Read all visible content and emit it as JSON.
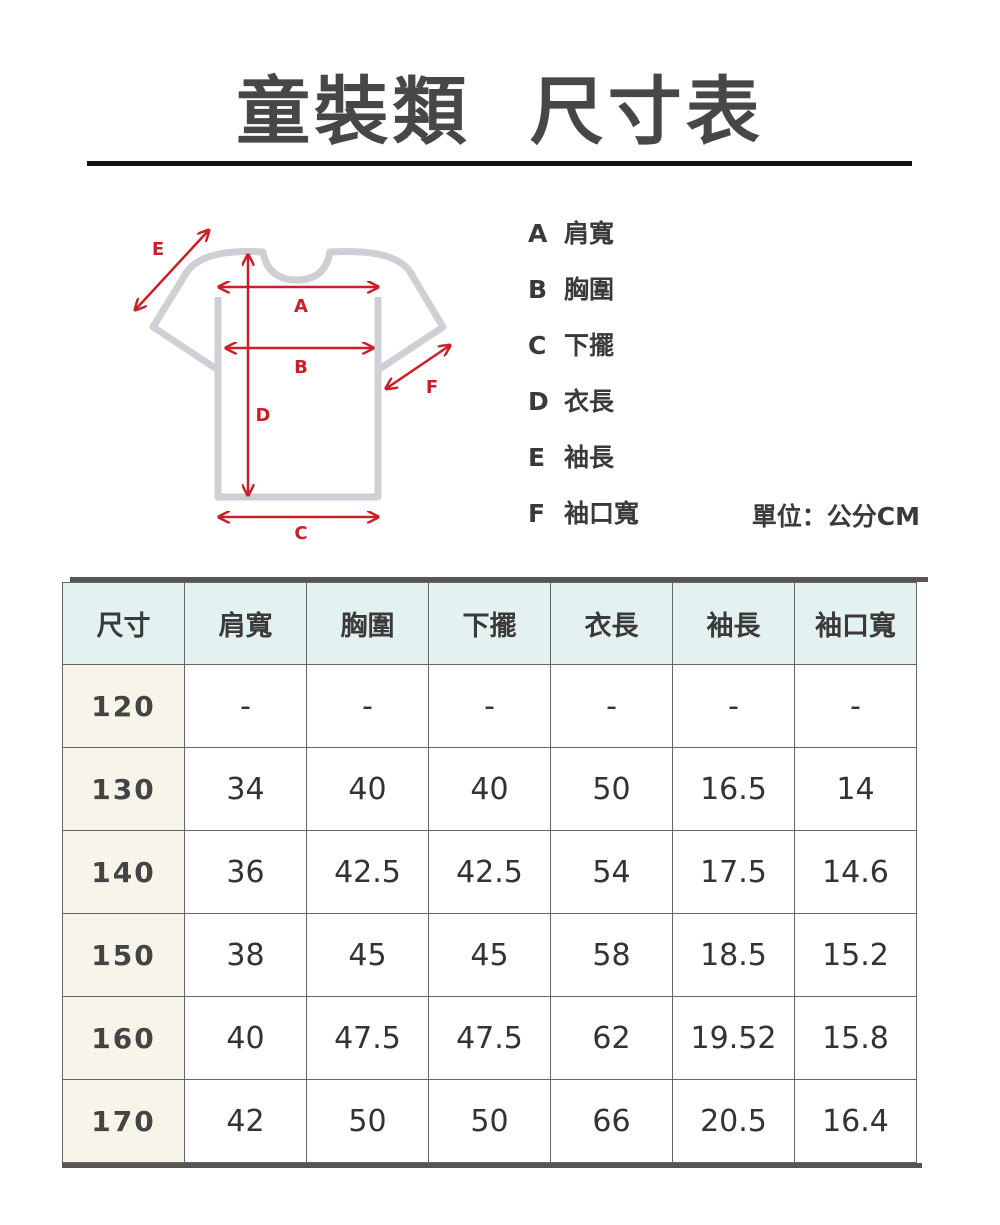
{
  "title": "童裝類  尺寸表",
  "diagram": {
    "labels": [
      "A",
      "B",
      "C",
      "D",
      "E",
      "F"
    ],
    "colors": {
      "arrow": "#c8202a",
      "shirt": "#cfcfd6"
    }
  },
  "legend": [
    {
      "key": "A",
      "label": "肩寬"
    },
    {
      "key": "B",
      "label": "胸圍"
    },
    {
      "key": "C",
      "label": "下擺"
    },
    {
      "key": "D",
      "label": "衣長"
    },
    {
      "key": "E",
      "label": "袖長"
    },
    {
      "key": "F",
      "label": "袖口寬"
    }
  ],
  "unit": "單位：公分CM",
  "table": {
    "headers": [
      "尺寸",
      "肩寬",
      "胸圍",
      "下擺",
      "衣長",
      "袖長",
      "袖口寬"
    ],
    "rows": [
      [
        "120",
        "-",
        "-",
        "-",
        "-",
        "-",
        "-"
      ],
      [
        "130",
        "34",
        "40",
        "40",
        "50",
        "16.5",
        "14"
      ],
      [
        "140",
        "36",
        "42.5",
        "42.5",
        "54",
        "17.5",
        "14.6"
      ],
      [
        "150",
        "38",
        "45",
        "45",
        "58",
        "18.5",
        "15.2"
      ],
      [
        "160",
        "40",
        "47.5",
        "47.5",
        "62",
        "19.52",
        "15.8"
      ],
      [
        "170",
        "42",
        "50",
        "50",
        "66",
        "20.5",
        "16.4"
      ]
    ]
  }
}
